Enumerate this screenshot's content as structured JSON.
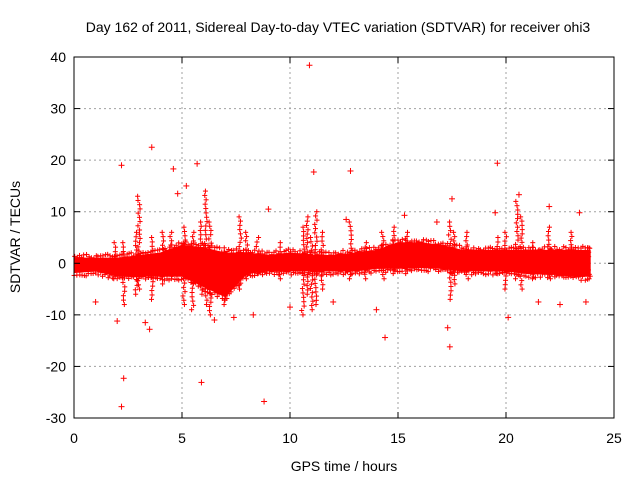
{
  "chart_data": {
    "type": "scatter",
    "title": "Day 162 of 2011, Sidereal Day-to-day VTEC variation (SDTVAR) for receiver ohi3",
    "xlabel": "GPS time / hours",
    "ylabel": "SDTVAR / TECUs",
    "xlim": [
      0,
      25
    ],
    "ylim": [
      -30,
      40
    ],
    "xticks": [
      0,
      5,
      10,
      15,
      20,
      25
    ],
    "yticks": [
      -30,
      -20,
      -10,
      0,
      10,
      20,
      30,
      40
    ],
    "xtick_labels": [
      "0",
      "5",
      "10",
      "15",
      "20",
      "25"
    ],
    "ytick_labels": [
      "-30",
      "-20",
      "-10",
      "0",
      "10",
      "20",
      "30",
      "40"
    ],
    "grid": true,
    "marker": "+",
    "color": "#ff0000",
    "band": {
      "x_start": 0.0,
      "x_end": 23.9,
      "lower": [
        [
          0.0,
          -1.8
        ],
        [
          1.0,
          -1.5
        ],
        [
          2.0,
          -2.5
        ],
        [
          3.0,
          -2.5
        ],
        [
          4.0,
          -2.5
        ],
        [
          5.0,
          -2.5
        ],
        [
          6.0,
          -4.5
        ],
        [
          7.0,
          -6.5
        ],
        [
          8.0,
          -2.0
        ],
        [
          9.0,
          -1.5
        ],
        [
          10.0,
          -1.5
        ],
        [
          11.0,
          -1.5
        ],
        [
          12.0,
          -1.5
        ],
        [
          13.0,
          -1.5
        ],
        [
          14.0,
          -1.0
        ],
        [
          15.0,
          -1.0
        ],
        [
          16.0,
          -0.8
        ],
        [
          17.0,
          -1.0
        ],
        [
          18.0,
          -1.5
        ],
        [
          19.0,
          -1.5
        ],
        [
          20.0,
          -1.5
        ],
        [
          21.0,
          -2.0
        ],
        [
          22.0,
          -2.0
        ],
        [
          23.0,
          -2.5
        ],
        [
          23.9,
          -2.5
        ]
      ],
      "upper": [
        [
          0.0,
          1.0
        ],
        [
          1.0,
          1.0
        ],
        [
          2.0,
          1.0
        ],
        [
          3.0,
          1.5
        ],
        [
          4.0,
          2.0
        ],
        [
          5.0,
          3.5
        ],
        [
          6.0,
          3.0
        ],
        [
          7.0,
          2.0
        ],
        [
          8.0,
          2.0
        ],
        [
          9.0,
          1.5
        ],
        [
          10.0,
          2.0
        ],
        [
          11.0,
          1.5
        ],
        [
          12.0,
          1.5
        ],
        [
          13.0,
          2.0
        ],
        [
          14.0,
          2.5
        ],
        [
          15.0,
          4.0
        ],
        [
          16.0,
          4.0
        ],
        [
          17.0,
          3.5
        ],
        [
          18.0,
          2.5
        ],
        [
          19.0,
          2.5
        ],
        [
          20.0,
          2.5
        ],
        [
          21.0,
          2.5
        ],
        [
          22.0,
          2.5
        ],
        [
          23.0,
          2.5
        ],
        [
          23.9,
          2.5
        ]
      ]
    },
    "spikes": [
      {
        "x": 1.9,
        "y_min": -3,
        "y_max": 4
      },
      {
        "x": 2.3,
        "y_min": -8,
        "y_max": 4
      },
      {
        "x": 2.9,
        "y_min": -6,
        "y_max": 6
      },
      {
        "x": 3.0,
        "y_min": -5,
        "y_max": 13
      },
      {
        "x": 3.6,
        "y_min": -7,
        "y_max": 5
      },
      {
        "x": 4.1,
        "y_min": -4,
        "y_max": 6
      },
      {
        "x": 4.5,
        "y_min": -3,
        "y_max": 6
      },
      {
        "x": 5.1,
        "y_min": -8,
        "y_max": 7
      },
      {
        "x": 5.5,
        "y_min": -9,
        "y_max": 6
      },
      {
        "x": 5.9,
        "y_min": -6,
        "y_max": 8
      },
      {
        "x": 6.1,
        "y_min": -8,
        "y_max": 14
      },
      {
        "x": 6.3,
        "y_min": -10,
        "y_max": 8
      },
      {
        "x": 7.0,
        "y_min": -8,
        "y_max": 3
      },
      {
        "x": 7.7,
        "y_min": -5,
        "y_max": 9
      },
      {
        "x": 8.0,
        "y_min": -3,
        "y_max": 6
      },
      {
        "x": 8.5,
        "y_min": -2,
        "y_max": 5
      },
      {
        "x": 9.5,
        "y_min": -3,
        "y_max": 4
      },
      {
        "x": 10.6,
        "y_min": -10,
        "y_max": 7
      },
      {
        "x": 10.8,
        "y_min": -6,
        "y_max": 9
      },
      {
        "x": 11.0,
        "y_min": -9,
        "y_max": 5
      },
      {
        "x": 11.2,
        "y_min": -8,
        "y_max": 10
      },
      {
        "x": 11.5,
        "y_min": -5,
        "y_max": 6
      },
      {
        "x": 12.8,
        "y_min": -3,
        "y_max": 8
      },
      {
        "x": 13.5,
        "y_min": -3,
        "y_max": 4
      },
      {
        "x": 14.3,
        "y_min": -3,
        "y_max": 6
      },
      {
        "x": 14.8,
        "y_min": -2,
        "y_max": 7
      },
      {
        "x": 15.4,
        "y_min": -2,
        "y_max": 6
      },
      {
        "x": 17.4,
        "y_min": -7,
        "y_max": 8
      },
      {
        "x": 17.6,
        "y_min": -4,
        "y_max": 6
      },
      {
        "x": 18.2,
        "y_min": -3,
        "y_max": 6
      },
      {
        "x": 19.6,
        "y_min": -2,
        "y_max": 5
      },
      {
        "x": 20.0,
        "y_min": -5,
        "y_max": 6
      },
      {
        "x": 20.5,
        "y_min": -3,
        "y_max": 12
      },
      {
        "x": 20.7,
        "y_min": -5,
        "y_max": 9
      },
      {
        "x": 21.2,
        "y_min": -3,
        "y_max": 4
      },
      {
        "x": 22.0,
        "y_min": -3,
        "y_max": 7
      },
      {
        "x": 23.0,
        "y_min": -2,
        "y_max": 6
      },
      {
        "x": 23.8,
        "y_min": -3,
        "y_max": 3
      }
    ],
    "outliers": [
      [
        2.2,
        19.0
      ],
      [
        2.3,
        -22.3
      ],
      [
        2.2,
        -27.8
      ],
      [
        3.6,
        22.5
      ],
      [
        4.6,
        18.3
      ],
      [
        5.7,
        19.3
      ],
      [
        5.9,
        -23.1
      ],
      [
        8.8,
        -26.8
      ],
      [
        10.9,
        38.4
      ],
      [
        11.1,
        17.7
      ],
      [
        12.8,
        17.9
      ],
      [
        14.4,
        -14.4
      ],
      [
        17.4,
        -16.2
      ],
      [
        19.6,
        19.4
      ],
      [
        17.3,
        -12.5
      ],
      [
        1.0,
        -7.5
      ],
      [
        2.0,
        -11.2
      ],
      [
        3.3,
        -11.5
      ],
      [
        3.5,
        -12.8
      ],
      [
        6.5,
        -11.0
      ],
      [
        7.4,
        -10.5
      ],
      [
        8.3,
        -10.0
      ],
      [
        10.0,
        -8.5
      ],
      [
        12.0,
        -7.5
      ],
      [
        14.0,
        -9.0
      ],
      [
        20.1,
        -10.5
      ],
      [
        21.5,
        -7.5
      ],
      [
        22.5,
        -8.0
      ],
      [
        23.7,
        -7.5
      ],
      [
        4.8,
        13.5
      ],
      [
        5.2,
        15.0
      ],
      [
        9.0,
        10.5
      ],
      [
        12.6,
        8.5
      ],
      [
        15.3,
        9.3
      ],
      [
        17.5,
        12.5
      ],
      [
        19.5,
        9.8
      ],
      [
        20.6,
        13.3
      ],
      [
        22.0,
        11.0
      ],
      [
        23.4,
        9.8
      ],
      [
        16.8,
        8.0
      ]
    ]
  }
}
